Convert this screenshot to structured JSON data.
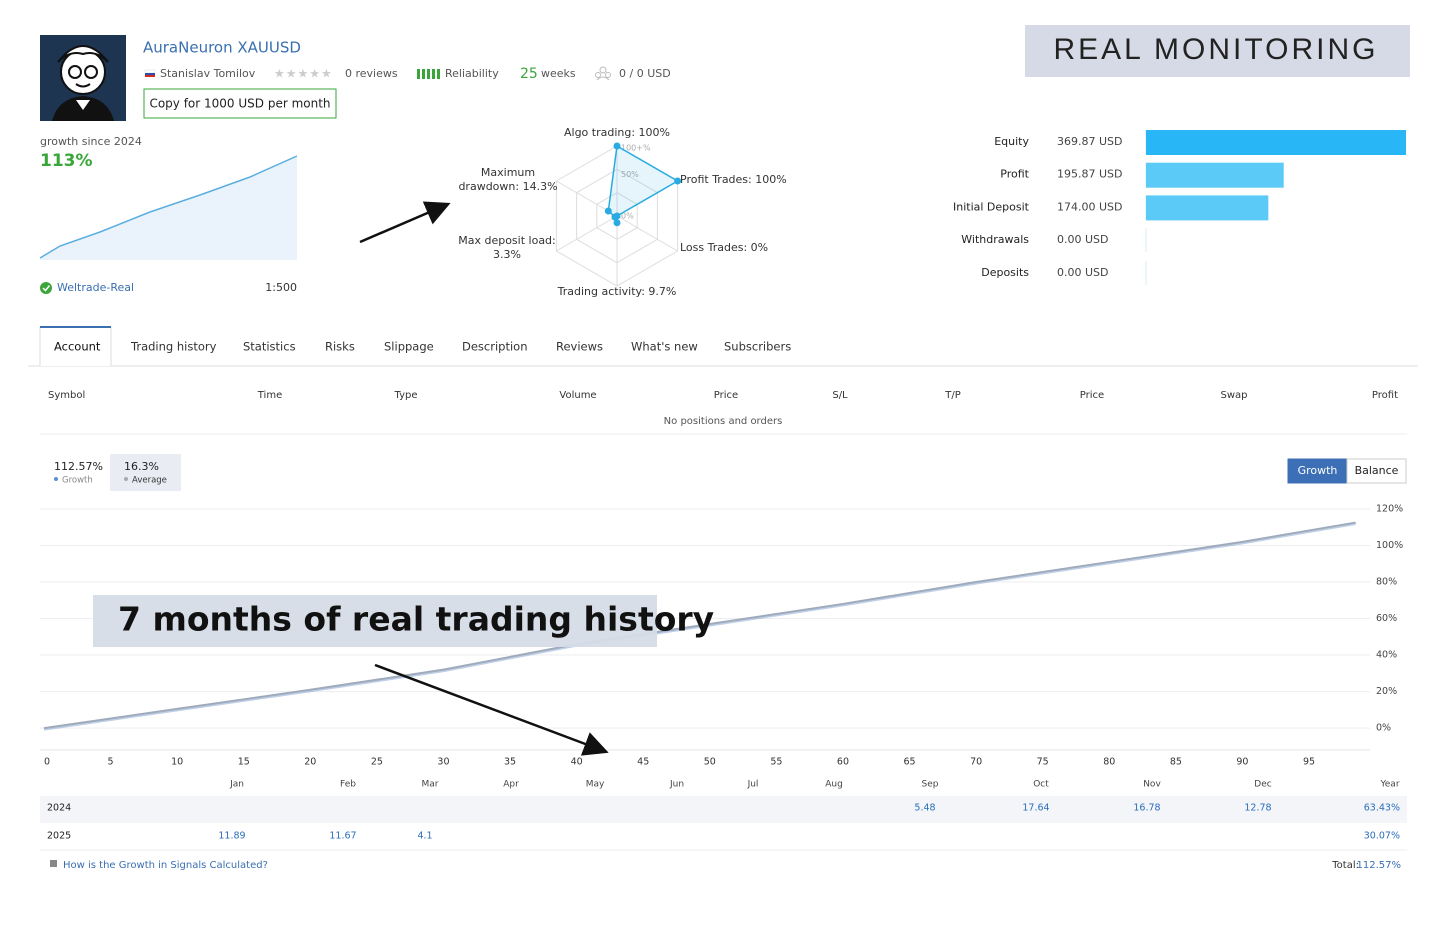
{
  "header": {
    "name": "AuraNeuron XAUUSD",
    "author": "Stanislav Tomilov",
    "reviews": "0 reviews",
    "reliability": "Reliability",
    "weeks_count": "25",
    "weeks_label": "weeks",
    "subscribers": "0 / 0 USD",
    "copy_button": "Copy for 1000 USD per month",
    "banner": "REAL MONITORING"
  },
  "summary": {
    "growth_label": "growth since 2024",
    "growth_value": "113%",
    "broker": "Weltrade-Real",
    "leverage": "1:500"
  },
  "radar": {
    "rings": [
      "100+%",
      "50%",
      "0%"
    ],
    "color": "#29abe2",
    "axes": [
      {
        "lines": [
          "Algo trading: 100%"
        ],
        "value": 100
      },
      {
        "lines": [
          "Profit Trades: 100%"
        ],
        "value": 100
      },
      {
        "lines": [
          "Loss Trades: 0%"
        ],
        "value": 0
      },
      {
        "lines": [
          "Trading activity: 9.7%"
        ],
        "value": 9.7
      },
      {
        "lines": [
          "Max deposit load:",
          "3.3%"
        ],
        "value": 3.3
      },
      {
        "lines": [
          "Maximum",
          "drawdown: 14.3%"
        ],
        "value": 14.3
      }
    ]
  },
  "balance": {
    "rows": [
      {
        "label": "Equity",
        "value": 369.87,
        "value_label": "369.87 USD",
        "color": "#29b6f6"
      },
      {
        "label": "Profit",
        "value": 195.87,
        "value_label": "195.87 USD",
        "color": "#5ccaf6"
      },
      {
        "label": "Initial Deposit",
        "value": 174.0,
        "value_label": "174.00 USD",
        "color": "#5ccaf6"
      },
      {
        "label": "Withdrawals",
        "value": 0.0,
        "value_label": "0.00 USD",
        "color": "#5ccaf6"
      },
      {
        "label": "Deposits",
        "value": 0.0,
        "value_label": "0.00 USD",
        "color": "#5ccaf6"
      }
    ]
  },
  "tabs": {
    "items": [
      "Account",
      "Trading history",
      "Statistics",
      "Risks",
      "Slippage",
      "Description",
      "Reviews",
      "What's new",
      "Subscribers"
    ],
    "active": 0
  },
  "positions": {
    "columns": [
      "Symbol",
      "Time",
      "Type",
      "Volume",
      "Price",
      "S/L",
      "T/P",
      "Price",
      "Swap",
      "Profit"
    ],
    "empty": "No positions and orders"
  },
  "growth_chart": {
    "type": "line",
    "stats": [
      {
        "value": "112.57%",
        "label": "Growth"
      },
      {
        "value": "16.3%",
        "label": "Average"
      }
    ],
    "buttons": [
      "Growth",
      "Balance"
    ],
    "active_button": 0,
    "x": [
      0,
      10,
      20,
      30,
      40,
      50,
      60,
      70,
      80,
      90,
      98.5
    ],
    "values": [
      0,
      10.5,
      21,
      32,
      46,
      57,
      68,
      80,
      91,
      102,
      112.57
    ],
    "color": "#9fabbb",
    "xlim": [
      0,
      100
    ],
    "ylim": [
      -12,
      120
    ],
    "xticks": [
      0,
      5,
      10,
      15,
      20,
      25,
      30,
      35,
      40,
      45,
      50,
      55,
      60,
      65,
      70,
      75,
      80,
      85,
      90,
      95
    ],
    "yticks": [
      {
        "value": 0,
        "label": "0%"
      },
      {
        "value": 20,
        "label": "20%"
      },
      {
        "value": 40,
        "label": "40%"
      },
      {
        "value": 60,
        "label": "60%"
      },
      {
        "value": 80,
        "label": "80%"
      },
      {
        "value": 100,
        "label": "100%"
      },
      {
        "value": 120,
        "label": "120%"
      }
    ],
    "grid": true
  },
  "annotation": "7 months of real trading history",
  "monthly_table": {
    "columns": [
      "Jan",
      "Feb",
      "Mar",
      "Apr",
      "May",
      "Jun",
      "Jul",
      "Aug",
      "Sep",
      "Oct",
      "Nov",
      "Dec",
      "Year"
    ],
    "rows": [
      {
        "year": "2024",
        "cells": [
          null,
          null,
          null,
          null,
          null,
          null,
          null,
          null,
          5.48,
          17.64,
          16.78,
          12.78,
          "63.43%"
        ]
      },
      {
        "year": "2025",
        "cells": [
          11.89,
          11.67,
          4.1,
          null,
          null,
          null,
          null,
          null,
          null,
          null,
          null,
          null,
          "30.07%"
        ]
      }
    ]
  },
  "footer": {
    "link": "How is the Growth in Signals Calculated?",
    "total_label": "Total:",
    "total_value": "112.57%"
  }
}
